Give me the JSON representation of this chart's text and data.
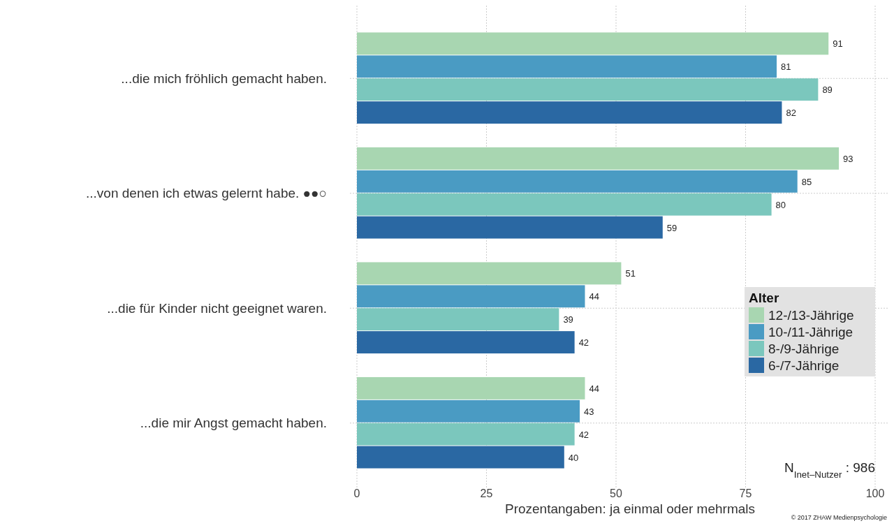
{
  "chart_data": {
    "type": "bar",
    "orientation": "horizontal",
    "xlabel": "Prozentangaben: ja einmal oder mehrmals",
    "legend_title": "Alter",
    "categories": [
      "...die mich fröhlich gemacht haben.",
      "...von denen ich etwas gelernt habe. ●●○",
      "...die für Kinder nicht geeignet waren.",
      "...die mir Angst gemacht haben."
    ],
    "series": [
      {
        "name": "12-/13-Jährige",
        "color": "#a8d6b1",
        "values": [
          91,
          93,
          51,
          44
        ]
      },
      {
        "name": "10-/11-Jährige",
        "color": "#4a9bc3",
        "values": [
          81,
          85,
          44,
          43
        ]
      },
      {
        "name": "8-/9-Jährige",
        "color": "#7bc7bd",
        "values": [
          89,
          80,
          39,
          42
        ]
      },
      {
        "name": "6-/7-Jährige",
        "color": "#2a68a3",
        "values": [
          82,
          59,
          42,
          40
        ]
      }
    ],
    "xlim": [
      0,
      100
    ],
    "xticks": [
      0,
      25,
      50,
      75,
      100
    ],
    "grid": true,
    "legend": "right",
    "data_labels": true,
    "annotations": [
      "N$_{Inet–Nutzer}$ : 986",
      "© 2017 ZHAW Medienpsychologie"
    ]
  }
}
